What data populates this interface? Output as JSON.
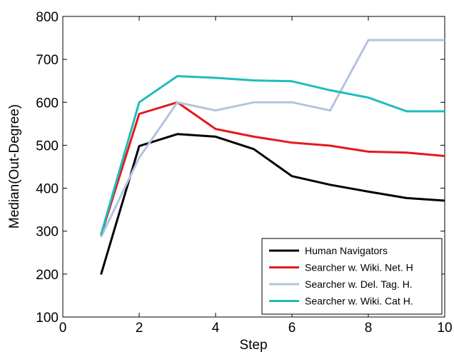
{
  "chart_data": {
    "type": "line",
    "xlabel": "Step",
    "ylabel": "Median(Out-Degree)",
    "xlim": [
      0,
      10
    ],
    "ylim": [
      100,
      800
    ],
    "xticks": [
      0,
      2,
      4,
      6,
      8,
      10
    ],
    "yticks": [
      100,
      200,
      300,
      400,
      500,
      600,
      700,
      800
    ],
    "grid": false,
    "legend_position": "bottom-right",
    "series": [
      {
        "name": "Human Navigators",
        "color": "#000000",
        "x": [
          1,
          2,
          3,
          4,
          5,
          6,
          7,
          8,
          9,
          10
        ],
        "y": [
          199,
          498,
          526,
          520,
          491,
          428,
          408,
          392,
          377,
          371
        ]
      },
      {
        "name": "Searcher w. Wiki. Net. H",
        "color": "#e31a1c",
        "x": [
          1,
          2,
          3,
          4,
          5,
          6,
          7,
          8,
          9,
          10
        ],
        "y": [
          290,
          573,
          600,
          538,
          520,
          506,
          499,
          485,
          483,
          475
        ]
      },
      {
        "name": "Searcher w. Del. Tag. H.",
        "color": "#b3c3e0",
        "x": [
          1,
          2,
          3,
          4,
          5,
          6,
          7,
          8,
          9,
          10
        ],
        "y": [
          286,
          471,
          600,
          581,
          600,
          600,
          581,
          745,
          745,
          745
        ]
      },
      {
        "name": "Searcher w. Wiki. Cat H.",
        "color": "#1fbcbc",
        "x": [
          1,
          2,
          3,
          4,
          5,
          6,
          7,
          8,
          9,
          10
        ],
        "y": [
          292,
          600,
          661,
          657,
          651,
          649,
          628,
          611,
          579,
          579
        ]
      }
    ]
  }
}
